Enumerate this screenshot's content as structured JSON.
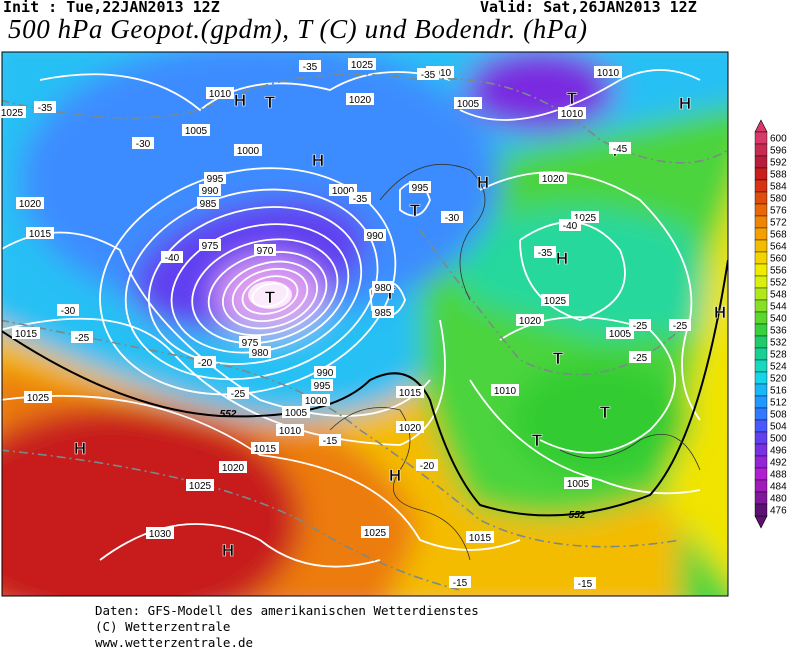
{
  "header": {
    "init": "Init : Tue,22JAN2013 12Z",
    "valid": "Valid: Sat,26JAN2013 12Z"
  },
  "title": "500 hPa Geopot.(gpdm), T (C) und Bodendr. (hPa)",
  "map": {
    "highs": [
      "H",
      "H",
      "H",
      "H",
      "H",
      "H",
      "H",
      "H",
      "H"
    ],
    "lows": [
      "T",
      "T",
      "T",
      "T",
      "T",
      "T",
      "T",
      "T",
      "T"
    ],
    "isobar_labels": [
      "1025",
      "1010",
      "1010",
      "1010",
      "1010",
      "1005",
      "1005",
      "1000",
      "1000",
      "995",
      "995",
      "990",
      "990",
      "990",
      "985",
      "985",
      "980",
      "980",
      "975",
      "975",
      "970",
      "1015",
      "1015",
      "1015",
      "1015",
      "1015",
      "1020",
      "1020",
      "1020",
      "1020",
      "1020",
      "1020",
      "1025",
      "1025",
      "1025",
      "1025",
      "1025",
      "1025",
      "1030",
      "1005",
      "1005",
      "1005",
      "1010",
      "1010",
      "995",
      "1000"
    ],
    "temperature_labels": [
      "-35",
      "-35",
      "-35",
      "-30",
      "-40",
      "-30",
      "-25",
      "-20",
      "-25",
      "-15",
      "-20",
      "-15",
      "-15",
      "-25",
      "-25",
      "-40",
      "-35",
      "-25",
      "-35",
      "-30",
      "-45"
    ],
    "geopotential_labels": [
      "552",
      "552"
    ]
  },
  "colorbar": {
    "labels": [
      600,
      596,
      592,
      588,
      584,
      580,
      576,
      572,
      568,
      564,
      560,
      556,
      552,
      548,
      544,
      540,
      536,
      532,
      528,
      524,
      520,
      516,
      512,
      508,
      504,
      500,
      496,
      492,
      488,
      484,
      480,
      476
    ],
    "colors": [
      "#d8386a",
      "#c82a52",
      "#b81e3c",
      "#c81e1e",
      "#d83414",
      "#e04c0c",
      "#e86808",
      "#f08404",
      "#f4a000",
      "#f4bc00",
      "#f4d400",
      "#f0ec00",
      "#d8f010",
      "#b0e81c",
      "#88e024",
      "#5cd82c",
      "#38d03c",
      "#20cc68",
      "#18d094",
      "#18d8c0",
      "#18d4e8",
      "#18b8f8",
      "#2098ff",
      "#3078ff",
      "#4858ff",
      "#6040f0",
      "#7830e0",
      "#9424d8",
      "#b020d0",
      "#a01cb8",
      "#80189c",
      "#5c1070"
    ]
  },
  "footer": [
    "Daten: GFS-Modell des amerikanischen Wetterdienstes",
    "(C) Wetterzentrale",
    "www.wetterzentrale.de"
  ]
}
